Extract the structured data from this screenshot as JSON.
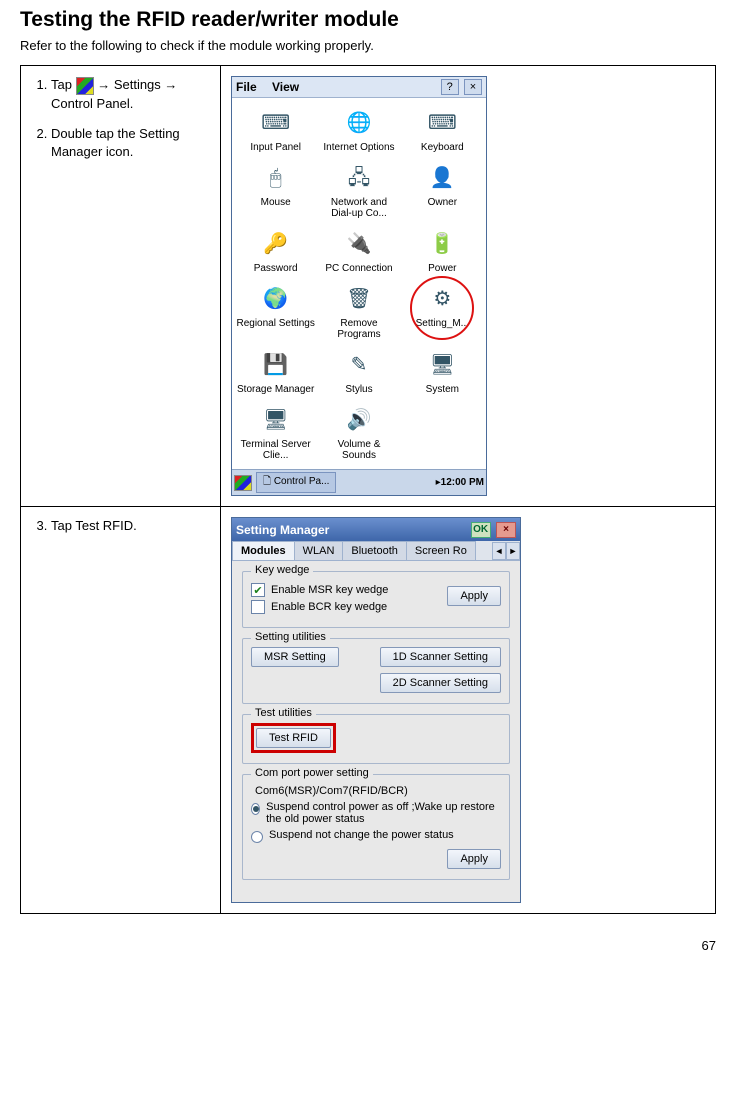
{
  "page": {
    "title": "Testing the RFID reader/writer module",
    "intro": "Refer to the following to check if the module working properly.",
    "number": "67"
  },
  "steps_row1": {
    "s1_pre": "Tap ",
    "s1_post": " → Settings → Control Panel.",
    "s2": "Double tap the Setting Manager icon."
  },
  "steps_row2": {
    "s3": "Tap Test RFID."
  },
  "cp": {
    "menu_file": "File",
    "menu_view": "View",
    "help_btn": "?",
    "close_btn": "×",
    "items": [
      {
        "label": "Input Panel",
        "glyph": "⌨"
      },
      {
        "label": "Internet Options",
        "glyph": "🌐"
      },
      {
        "label": "Keyboard",
        "glyph": "⌨"
      },
      {
        "label": "Mouse",
        "glyph": "🖱"
      },
      {
        "label": "Network and Dial-up Co...",
        "glyph": "🖧"
      },
      {
        "label": "Owner",
        "glyph": "👤"
      },
      {
        "label": "Password",
        "glyph": "🔑"
      },
      {
        "label": "PC Connection",
        "glyph": "🔌"
      },
      {
        "label": "Power",
        "glyph": "🔋"
      },
      {
        "label": "Regional Settings",
        "glyph": "🌍"
      },
      {
        "label": "Remove Programs",
        "glyph": "🗑"
      },
      {
        "label": "Setting_M...",
        "glyph": "⚙"
      },
      {
        "label": "Storage Manager",
        "glyph": "💾"
      },
      {
        "label": "Stylus",
        "glyph": "✎"
      },
      {
        "label": "System",
        "glyph": "🖥"
      },
      {
        "label": "Terminal Server Clie...",
        "glyph": "🖥"
      },
      {
        "label": "Volume & Sounds",
        "glyph": "🔊"
      }
    ],
    "task_label": "Control Pa...",
    "clock": "12:00 PM"
  },
  "sm": {
    "title": "Setting Manager",
    "ok": "OK",
    "close": "×",
    "tabs": [
      "Modules",
      "WLAN",
      "Bluetooth",
      "Screen Ro"
    ],
    "tab_active": 0,
    "group_keywedge": {
      "legend": "Key wedge",
      "chk1": "Enable MSR key wedge",
      "chk2": "Enable BCR key wedge",
      "apply": "Apply"
    },
    "group_setting": {
      "legend": "Setting utilities",
      "btn1": "MSR Setting",
      "btn2": "1D Scanner Setting",
      "btn3": "2D Scanner Setting"
    },
    "group_test": {
      "legend": "Test utilities",
      "btn": "Test RFID"
    },
    "group_com": {
      "legend": "Com port power setting",
      "sub": "Com6(MSR)/Com7(RFID/BCR)",
      "opt1": "Suspend control power as off ;Wake up restore the old power status",
      "opt2": "Suspend not change the power status",
      "apply": "Apply"
    }
  }
}
